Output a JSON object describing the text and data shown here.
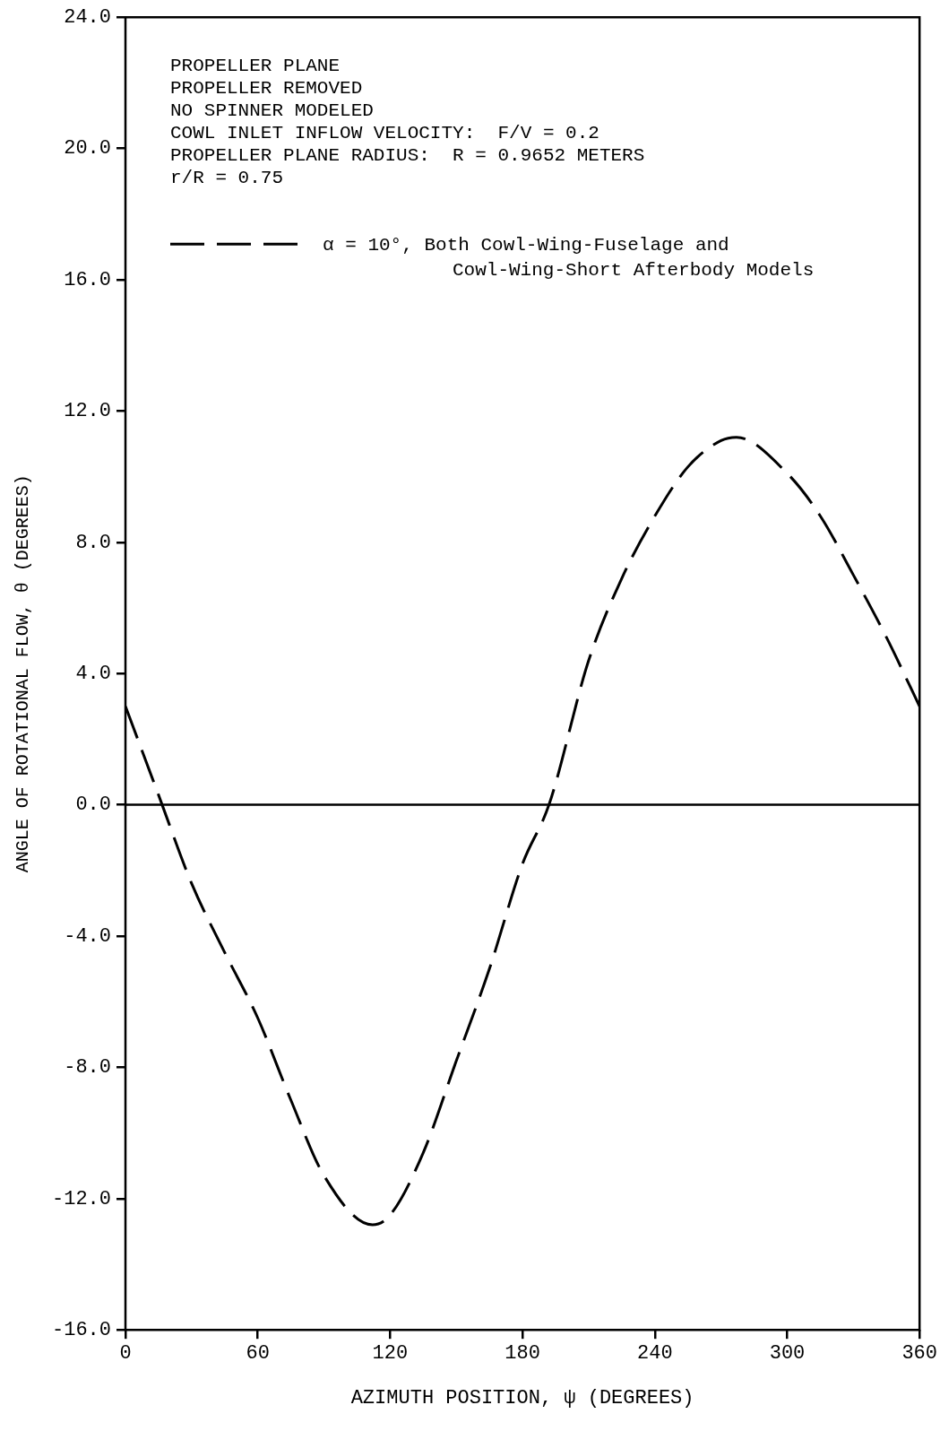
{
  "chart_data": {
    "type": "line",
    "xlabel": "AZIMUTH POSITION, ψ (DEGREES)",
    "ylabel": "ANGLE OF ROTATIONAL FLOW, θ (DEGREES)",
    "annotations": [
      "PROPELLER PLANE",
      "PROPELLER REMOVED",
      "NO SPINNER MODELED",
      "COWL INLET INFLOW VELOCITY:  F/V = 0.2",
      "PROPELLER PLANE RADIUS:  R = 0.9652 METERS",
      "r/R = 0.75"
    ],
    "x": [
      0,
      15,
      30,
      45,
      60,
      75,
      90,
      112,
      120,
      135,
      150,
      165,
      180,
      192,
      210,
      225,
      240,
      255,
      270,
      277,
      300,
      315,
      330,
      345,
      360
    ],
    "series": [
      {
        "name": "α = 10°, Both Cowl-Wing-Fuselage and\nCowl-Wing-Short Afterbody Models",
        "color": "#000000",
        "line_style": "dashed",
        "values": [
          3.0,
          0.3,
          -2.4,
          -4.5,
          -6.5,
          -9.0,
          -11.3,
          -12.8,
          -12.5,
          -10.6,
          -7.8,
          -5.0,
          -1.8,
          0.0,
          4.4,
          6.9,
          8.8,
          10.3,
          11.1,
          11.2,
          10.1,
          8.8,
          7.0,
          5.1,
          3.0
        ]
      }
    ],
    "xlim": [
      0,
      360
    ],
    "xticks": [
      0,
      60,
      120,
      180,
      240,
      300,
      360
    ],
    "ylim": [
      -16,
      24
    ],
    "yticks": [
      {
        "value": -16,
        "label": "-16.0"
      },
      {
        "value": -12,
        "label": "-12.0"
      },
      {
        "value": -8,
        "label": "-8.0"
      },
      {
        "value": -4,
        "label": "-4.0"
      },
      {
        "value": 0,
        "label": "0.0"
      },
      {
        "value": 4,
        "label": "4.0"
      },
      {
        "value": 8,
        "label": "8.0"
      },
      {
        "value": 12,
        "label": "12.0"
      },
      {
        "value": 16,
        "label": "16.0"
      },
      {
        "value": 20,
        "label": "20.0"
      },
      {
        "value": 24,
        "label": "24.0"
      }
    ],
    "ref_lines": [
      {
        "axis": "y",
        "value": 0,
        "color": "#000000",
        "line_style": "solid"
      }
    ],
    "grid": false,
    "legend": "top",
    "marker": "none"
  }
}
